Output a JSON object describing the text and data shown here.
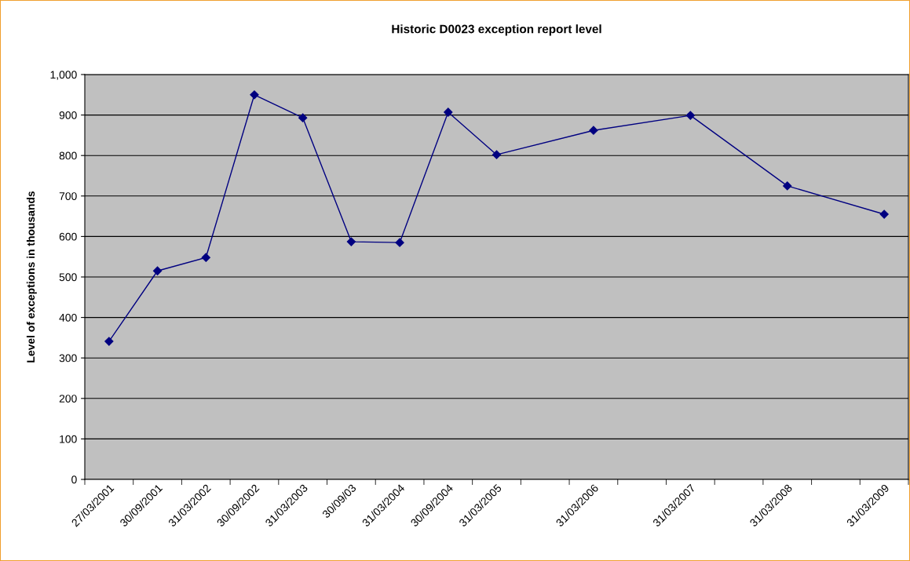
{
  "chart_data": {
    "type": "line",
    "title": "Historic D0023 exception report level",
    "ylabel": "Level of exceptions in thousands",
    "categories": [
      "27/03/2001",
      "30/09/2001",
      "31/03/2002",
      "30/09/2002",
      "31/03/2003",
      "30/09/03",
      "31/03/2004",
      "30/09/2004",
      "31/03/2005",
      null,
      "31/03/2006",
      null,
      "31/03/2007",
      null,
      "31/03/2008",
      null,
      "31/03/2009"
    ],
    "series": [
      {
        "color": "#000080",
        "values": [
          341,
          515,
          548,
          950,
          893,
          587,
          585,
          907,
          802,
          null,
          862,
          null,
          899,
          null,
          725,
          null,
          655
        ]
      }
    ],
    "ylim": [
      0,
      1000
    ],
    "yticks": [
      0,
      100,
      200,
      300,
      400,
      500,
      600,
      700,
      800,
      900,
      {
        "value": 1000,
        "label": "1,000"
      }
    ],
    "grid": "y",
    "marker": "diamond",
    "line_style": "solid"
  }
}
